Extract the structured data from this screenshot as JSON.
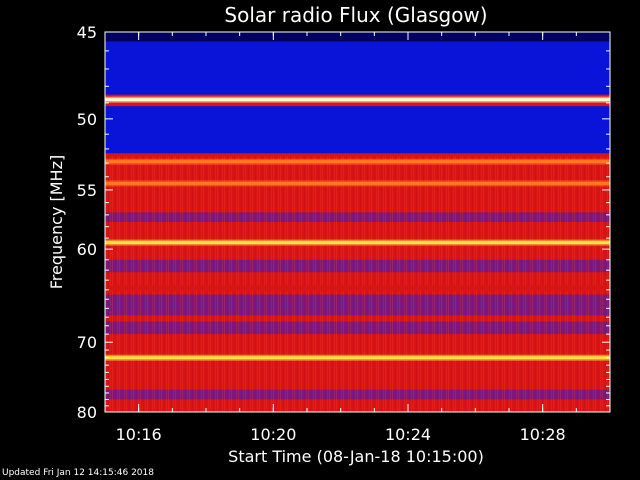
{
  "chart_data": {
    "type": "heatmap",
    "title": "Solar radio Flux (Glasgow)",
    "xlabel": "Start Time (08-Jan-18 10:15:00)",
    "ylabel": "Frequency [MHz]",
    "x_start": "10:15:00",
    "x_end": "10:30:00",
    "x_range_minutes": [
      0,
      15
    ],
    "x_ticks": [
      {
        "label": "10:16",
        "minute": 1
      },
      {
        "label": "10:20",
        "minute": 5
      },
      {
        "label": "10:24",
        "minute": 9
      },
      {
        "label": "10:28",
        "minute": 13
      }
    ],
    "y_range_mhz": [
      45,
      80
    ],
    "y_scale": "reciprocal",
    "y_ticks": [
      45,
      50,
      55,
      60,
      70,
      80
    ],
    "colormap": [
      "#000080",
      "#0000ff",
      "#ff0000",
      "#ffff00",
      "#ffffff"
    ],
    "background_level": "red",
    "bright_bands_mhz": [
      {
        "freq": 48.8,
        "level": "white"
      },
      {
        "freq": 52.9,
        "level": "orange"
      },
      {
        "freq": 54.5,
        "level": "orange"
      },
      {
        "freq": 59.4,
        "level": "yellow"
      },
      {
        "freq": 63.8,
        "level": "red"
      },
      {
        "freq": 72.0,
        "level": "yellow"
      }
    ],
    "dark_bands_mhz": [
      {
        "from": 45.0,
        "to": 45.5,
        "level": "navy"
      },
      {
        "from": 45.5,
        "to": 48.5,
        "level": "blue"
      },
      {
        "from": 49.2,
        "to": 52.3,
        "level": "blue"
      },
      {
        "from": 56.8,
        "to": 57.6,
        "level": "purple"
      },
      {
        "from": 61.0,
        "to": 62.2,
        "level": "purple"
      },
      {
        "from": 64.5,
        "to": 66.8,
        "level": "purple"
      },
      {
        "from": 67.5,
        "to": 69.0,
        "level": "purple"
      },
      {
        "from": 76.5,
        "to": 78.0,
        "level": "purple"
      }
    ]
  },
  "footer": {
    "updated": "Updated Fri Jan 12 14:15:46 2018"
  },
  "colors": {
    "background": "#000000",
    "frame": "#ffffff"
  }
}
